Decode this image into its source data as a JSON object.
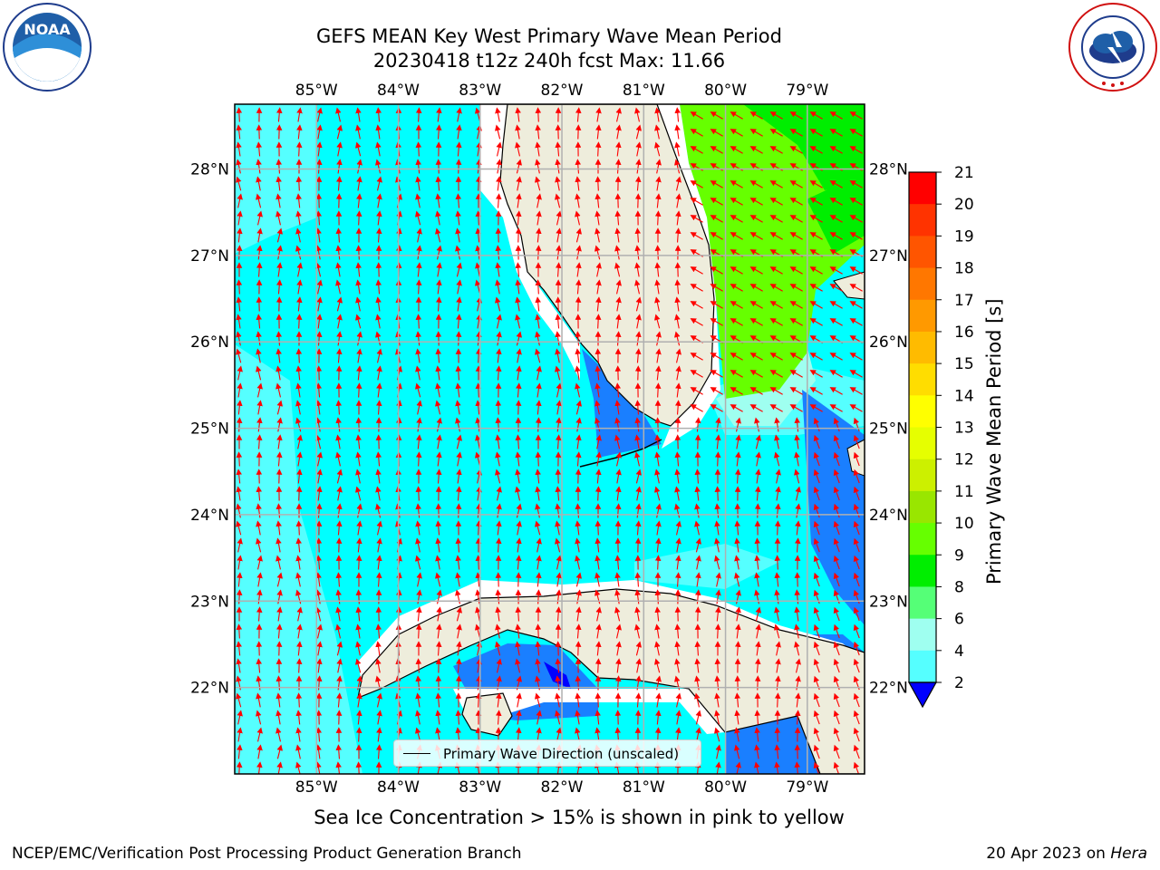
{
  "title": {
    "line1": "GEFS MEAN Key West Primary Wave Mean Period",
    "line2": "20230418 t12z 240h fcst   Max: 11.66"
  },
  "logos": {
    "left": {
      "name": "noaa-logo",
      "text": "NOAA",
      "ring_text": "NATIONAL OCEANIC AND ATMOSPHERIC ADMINISTRATION · U.S. DEPARTMENT OF COMMERCE"
    },
    "right": {
      "name": "nws-logo",
      "ring_text": "NATIONAL WEATHER SERVICE"
    }
  },
  "map": {
    "lon_ticks": [
      "85°W",
      "84°W",
      "83°W",
      "82°W",
      "81°W",
      "80°W",
      "79°W"
    ],
    "lat_ticks": [
      "28°N",
      "27°N",
      "26°N",
      "25°N",
      "24°N",
      "23°N",
      "22°N"
    ],
    "lon_range": [
      -86.0,
      -78.3
    ],
    "lat_range": [
      21.0,
      28.75
    ],
    "grid": true,
    "legend": {
      "label": "Primary Wave Direction (unscaled)",
      "placement": "bottom-center"
    }
  },
  "colorbar": {
    "label": "Primary Wave Mean Period [s]",
    "ticks": [
      "21",
      "20",
      "19",
      "18",
      "17",
      "16",
      "15",
      "14",
      "13",
      "12",
      "11",
      "10",
      "9",
      "8",
      "6",
      "4",
      "2"
    ],
    "colors": [
      "#ff0000",
      "#ff3300",
      "#ff5500",
      "#ff7700",
      "#ff9900",
      "#ffbb00",
      "#ffdd00",
      "#ffff00",
      "#e6ff00",
      "#ccf000",
      "#99e600",
      "#66ff00",
      "#00ee00",
      "#55ff77",
      "#9ffff0",
      "#55ffff",
      "#00ffff",
      "#0080ff",
      "#0000ff"
    ]
  },
  "footer": {
    "note": "Sea Ice Concentration > 15% is shown in pink to yellow",
    "left": "NCEP/EMC/Verification Post Processing Product Generation Branch",
    "right_date": "20 Apr 2023 on ",
    "right_host": "Hera"
  }
}
